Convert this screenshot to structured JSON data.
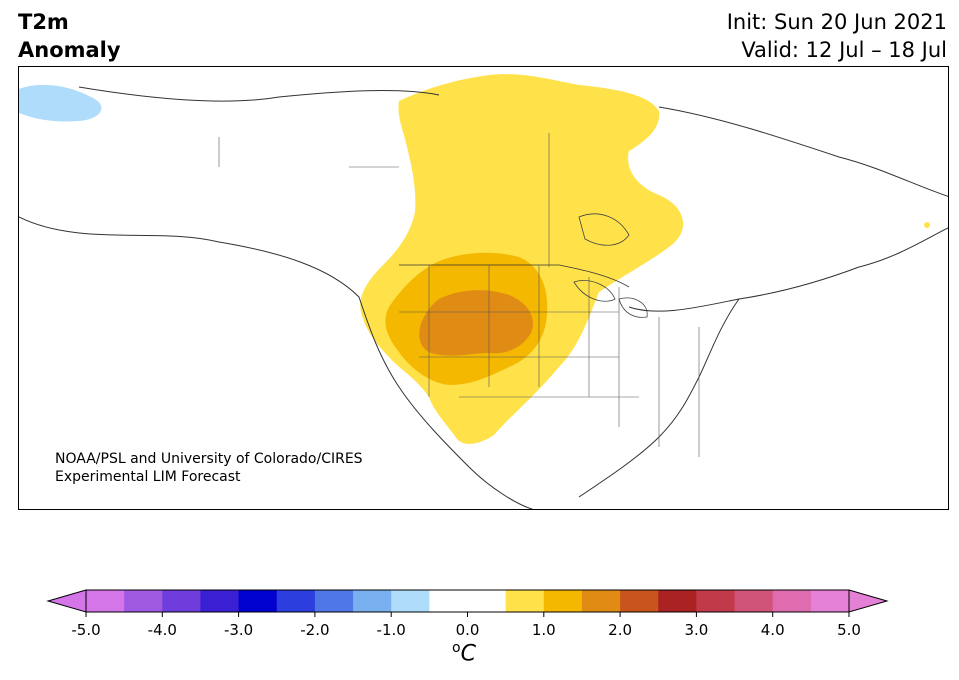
{
  "title": {
    "left_line1": "T2m",
    "left_line2": "Anomaly",
    "init": "Init: Sun 20 Jun 2021",
    "valid": "Valid: 12 Jul – 18 Jul"
  },
  "credit": {
    "line1": "NOAA/PSL and University of Colorado/CIRES",
    "line2": "Experimental LIM Forecast"
  },
  "colorbar": {
    "unit_sup": "o",
    "unit": "C",
    "tick_labels": [
      "-5.0",
      "-4.0",
      "-3.0",
      "-2.0",
      "-1.0",
      "0.0",
      "1.0",
      "2.0",
      "3.0",
      "4.0",
      "5.0"
    ],
    "min": -5.0,
    "max": 5.0,
    "step": 0.5,
    "colors": [
      "#d475e8",
      "#a05ae2",
      "#6e3ddc",
      "#3a20d2",
      "#0000cf",
      "#2c3ede",
      "#4f78e6",
      "#78b0f0",
      "#aedcfa",
      "#ffffff",
      "#ffffff",
      "#ffe14a",
      "#f4b800",
      "#e08c14",
      "#c8561c",
      "#aa2222",
      "#c03a4a",
      "#d05478",
      "#de6cae",
      "#e480d6"
    ],
    "under_color": "#d475e8",
    "over_color": "#e480d6"
  }
}
